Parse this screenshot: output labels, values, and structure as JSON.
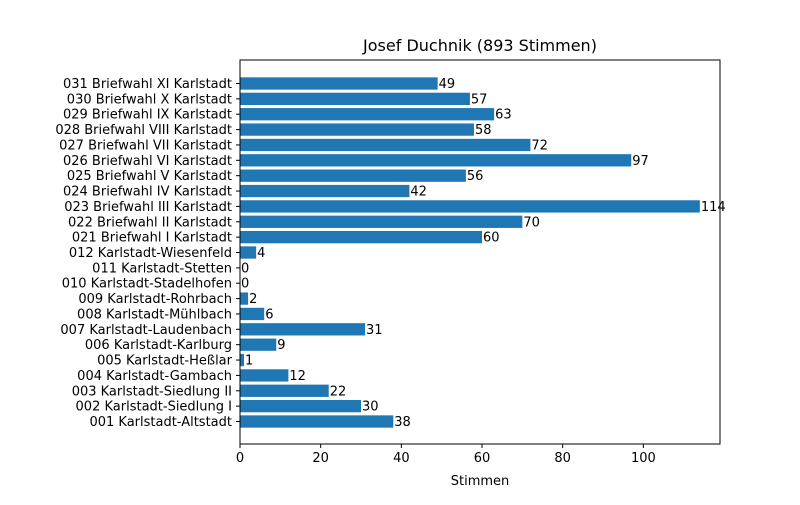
{
  "chart_data": {
    "type": "bar",
    "orientation": "horizontal",
    "title": "Josef Duchnik (893 Stimmen)",
    "xlabel": "Stimmen",
    "ylabel": "",
    "xlim": [
      0,
      119
    ],
    "xticks": [
      0,
      20,
      40,
      60,
      80,
      100
    ],
    "grid": false,
    "bar_color": "#1f77b4",
    "categories": [
      "001 Karlstadt-Altstadt",
      "002 Karlstadt-Siedlung I",
      "003 Karlstadt-Siedlung II",
      "004 Karlstadt-Gambach",
      "005 Karlstadt-Heßlar",
      "006 Karlstadt-Karlburg",
      "007 Karlstadt-Laudenbach",
      "008 Karlstadt-Mühlbach",
      "009 Karlstadt-Rohrbach",
      "010 Karlstadt-Stadelhofen",
      "011 Karlstadt-Stetten",
      "012 Karlstadt-Wiesenfeld",
      "021 Briefwahl I Karlstadt",
      "022 Briefwahl II Karlstadt",
      "023 Briefwahl III Karlstadt",
      "024 Briefwahl IV Karlstadt",
      "025 Briefwahl V Karlstadt",
      "026 Briefwahl VI Karlstadt",
      "027 Briefwahl VII Karlstadt",
      "028 Briefwahl VIII Karlstadt",
      "029 Briefwahl IX Karlstadt",
      "030 Briefwahl X Karlstadt",
      "031 Briefwahl XI Karlstadt"
    ],
    "values": [
      38,
      30,
      22,
      12,
      1,
      9,
      31,
      6,
      2,
      0,
      0,
      4,
      60,
      70,
      114,
      42,
      56,
      97,
      72,
      58,
      63,
      57,
      49
    ]
  }
}
